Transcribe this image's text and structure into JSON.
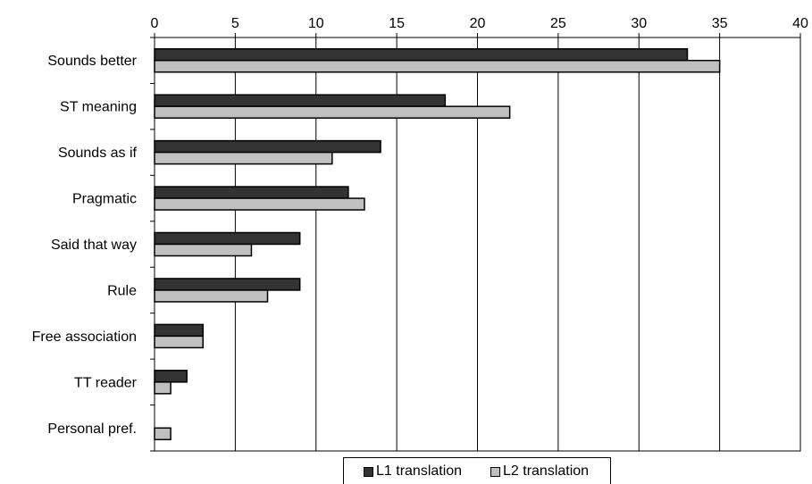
{
  "chart_data": {
    "type": "bar",
    "orientation": "horizontal",
    "categories": [
      "Sounds better",
      "ST meaning",
      "Sounds as if",
      "Pragmatic",
      "Said that way",
      "Rule",
      "Free association",
      "TT reader",
      "Personal pref."
    ],
    "series": [
      {
        "name": "L1 translation",
        "values": [
          33,
          18,
          14,
          12,
          9,
          9,
          3,
          2,
          0
        ],
        "color": "#333333"
      },
      {
        "name": "L2 translation",
        "values": [
          35,
          22,
          11,
          13,
          6,
          7,
          3,
          1,
          1
        ],
        "color": "#c0c0c0"
      }
    ],
    "x_ticks": [
      "0",
      "5",
      "10",
      "15",
      "20",
      "25",
      "30",
      "35",
      "40"
    ],
    "xlim": [
      0,
      40
    ],
    "x_axis_position": "top",
    "grid": true,
    "legend_position": "bottom"
  }
}
